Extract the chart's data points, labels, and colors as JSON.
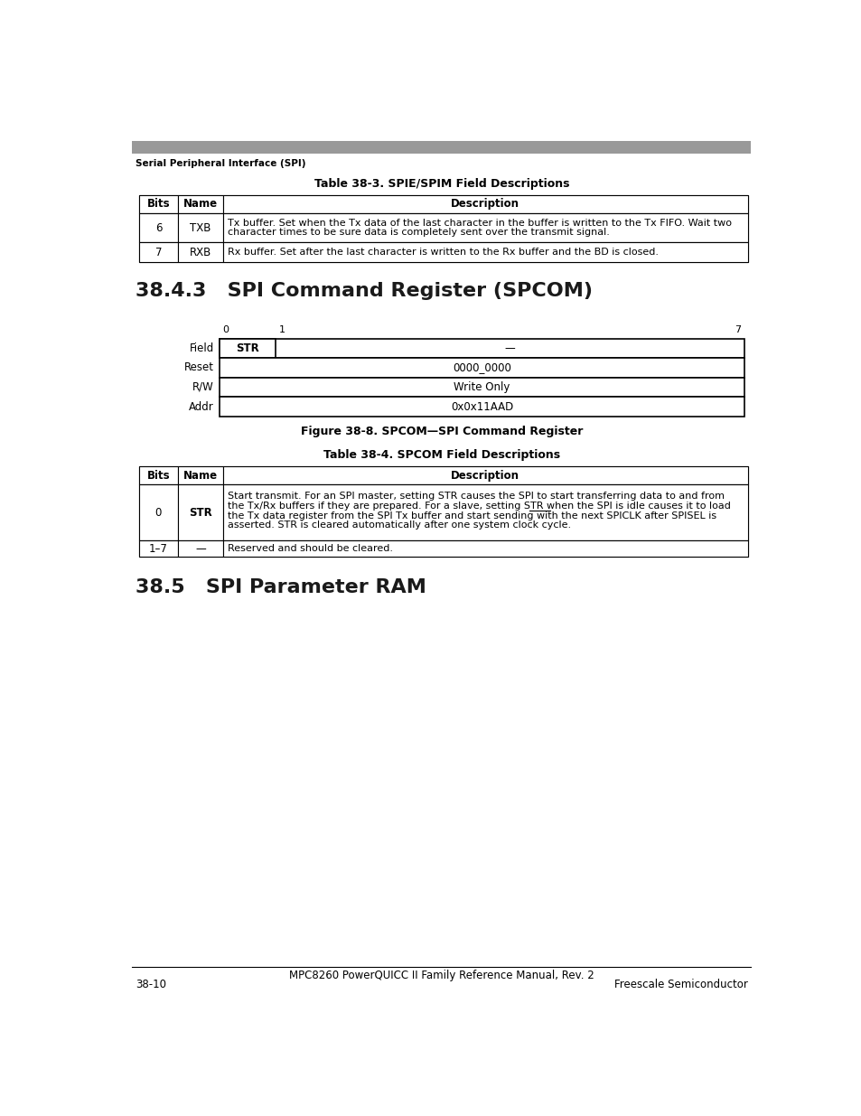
{
  "page_header_text": "Serial Peripheral Interface (SPI)",
  "top_bar_color": "#999999",
  "table1_title": "Table 38-3. SPIE/SPIM Field Descriptions",
  "table1_headers": [
    "Bits",
    "Name",
    "Description"
  ],
  "table1_rows": [
    [
      "6",
      "TXB",
      "Tx buffer. Set when the Tx data of the last character in the buffer is written to the Tx FIFO. Wait two\ncharacter times to be sure data is completely sent over the transmit signal."
    ],
    [
      "7",
      "RXB",
      "Rx buffer. Set after the last character is written to the Rx buffer and the BD is closed."
    ]
  ],
  "section_title": "38.4.3   SPI Command Register (SPCOM)",
  "fig_caption": "Figure 38-8. SPCOM—SPI Command Register",
  "table2_title": "Table 38-4. SPCOM Field Descriptions",
  "table2_headers": [
    "Bits",
    "Name",
    "Description"
  ],
  "table2_rows": [
    [
      "0",
      "STR",
      "Start transmit. For an SPI master, setting STR causes the SPI to start transferring data to and from\nthe Tx/Rx buffers if they are prepared. For a slave, setting STR when the SPI is idle causes it to load\nthe Tx data register from the SPI Tx buffer and start sending with the next SPICLK after SPISEL is\nasserted. STR is cleared automatically after one system clock cycle."
    ],
    [
      "1–7",
      "—",
      "Reserved and should be cleared."
    ]
  ],
  "section2_title": "38.5   SPI Parameter RAM",
  "footer_center": "MPC8260 PowerQUICC II Family Reference Manual, Rev. 2",
  "footer_left": "38-10",
  "footer_right": "Freescale Semiconductor",
  "bg_color": "#ffffff"
}
